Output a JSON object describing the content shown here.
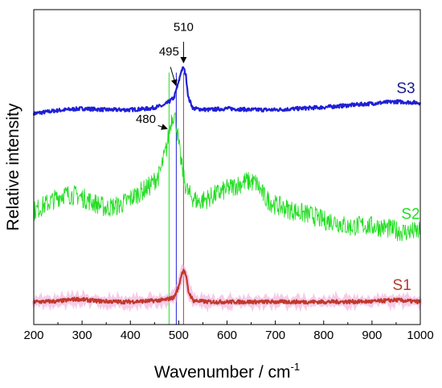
{
  "chart_data": {
    "type": "line",
    "xlabel": "Wavenumber / cm",
    "xlabel_sup": "-1",
    "ylabel": "Relative intensity",
    "xlim": [
      200,
      1000
    ],
    "ylim": [
      0,
      100
    ],
    "x_ticks": [
      "200",
      "300",
      "400",
      "500",
      "600",
      "700",
      "800",
      "900",
      "1000"
    ],
    "y_tick_labels": false,
    "grid": false,
    "series": [
      {
        "name": "S3",
        "color": "#1f1fd6",
        "noise": 0.6,
        "points": [
          [
            200,
            67
          ],
          [
            250,
            68
          ],
          [
            300,
            68.6
          ],
          [
            350,
            68.2
          ],
          [
            400,
            68.2
          ],
          [
            440,
            68.6
          ],
          [
            470,
            69.6
          ],
          [
            490,
            72
          ],
          [
            500,
            77
          ],
          [
            505,
            80.5
          ],
          [
            510,
            81.6
          ],
          [
            515,
            79
          ],
          [
            520,
            72
          ],
          [
            530,
            68.6
          ],
          [
            560,
            68.2
          ],
          [
            600,
            68.6
          ],
          [
            650,
            68.2
          ],
          [
            700,
            68.2
          ],
          [
            750,
            68.6
          ],
          [
            800,
            69
          ],
          [
            850,
            69.6
          ],
          [
            900,
            70.2
          ],
          [
            950,
            70.8
          ],
          [
            1000,
            70.4
          ]
        ]
      },
      {
        "name": "S2",
        "color": "#22dd22",
        "noise": 3.2,
        "points": [
          [
            200,
            36
          ],
          [
            230,
            38.6
          ],
          [
            260,
            41.4
          ],
          [
            290,
            41
          ],
          [
            320,
            39
          ],
          [
            350,
            37
          ],
          [
            380,
            38
          ],
          [
            410,
            41
          ],
          [
            440,
            44
          ],
          [
            460,
            47.5
          ],
          [
            475,
            56
          ],
          [
            485,
            65.5
          ],
          [
            490,
            67
          ],
          [
            495,
            64
          ],
          [
            500,
            57
          ],
          [
            510,
            46.5
          ],
          [
            520,
            41.5
          ],
          [
            540,
            39
          ],
          [
            560,
            40
          ],
          [
            600,
            43
          ],
          [
            640,
            45.5
          ],
          [
            660,
            45
          ],
          [
            680,
            40
          ],
          [
            700,
            38
          ],
          [
            740,
            36
          ],
          [
            780,
            34.5
          ],
          [
            800,
            33
          ],
          [
            820,
            33
          ],
          [
            850,
            31
          ],
          [
            880,
            31.5
          ],
          [
            920,
            31
          ],
          [
            960,
            29.5
          ],
          [
            1000,
            29.5
          ]
        ]
      },
      {
        "name": "S1",
        "color": "#c0392b",
        "noise": 0.6,
        "points": [
          [
            200,
            7.2
          ],
          [
            250,
            7.4
          ],
          [
            290,
            8.1
          ],
          [
            330,
            7.5
          ],
          [
            380,
            7.2
          ],
          [
            430,
            7.4
          ],
          [
            470,
            7.8
          ],
          [
            490,
            8.6
          ],
          [
            500,
            12
          ],
          [
            505,
            15.5
          ],
          [
            510,
            17.6
          ],
          [
            515,
            15.5
          ],
          [
            520,
            10.5
          ],
          [
            530,
            7.6
          ],
          [
            560,
            7.2
          ],
          [
            600,
            7.2
          ],
          [
            700,
            7.2
          ],
          [
            800,
            7.2
          ],
          [
            900,
            7.3
          ],
          [
            950,
            7.8
          ],
          [
            980,
            7.4
          ],
          [
            1000,
            7.2
          ]
        ]
      }
    ],
    "shadow_color": "#f0a8d8",
    "vertical_lines": [
      {
        "x": 480,
        "color": "#22dd22"
      },
      {
        "x": 495,
        "color": "#1f1fd6"
      },
      {
        "x": 510,
        "color": "#c0392b"
      }
    ],
    "annotations": [
      {
        "text": "510",
        "tx": 510,
        "ty": 93.2,
        "ax1": 510,
        "ay1": 89.8,
        "ax2": 510,
        "ay2": 83.2
      },
      {
        "text": "495",
        "tx": 480,
        "ty": 85.5,
        "ax1": 483,
        "ay1": 81.8,
        "ax2": 494,
        "ay2": 76.0
      },
      {
        "text": "480",
        "tx": 432,
        "ty": 64.0,
        "ax1": 457,
        "ay1": 63.2,
        "ax2": 476,
        "ay2": 62.2
      }
    ],
    "series_labels": [
      {
        "text": "S3",
        "x": 970,
        "y": 73.5,
        "color": "#1a1a99"
      },
      {
        "text": "S2",
        "x": 980,
        "y": 33.5,
        "color": "#22dd22"
      },
      {
        "text": "S1",
        "x": 962,
        "y": 11.0,
        "color": "#b03a2e"
      }
    ]
  }
}
